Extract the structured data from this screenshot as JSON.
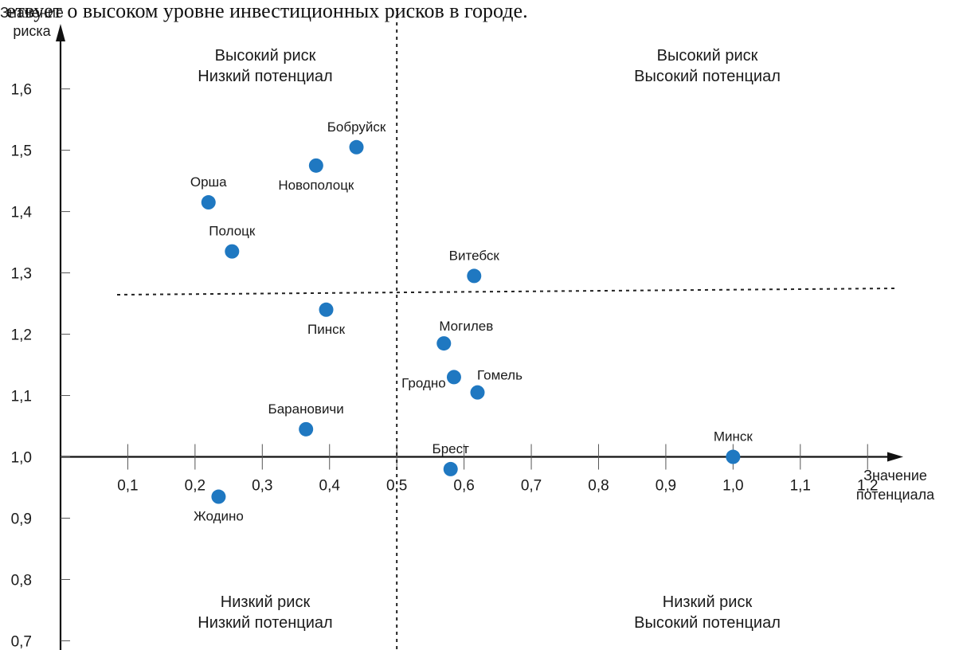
{
  "header_text": "етвует о высоком уровне инвестиционных рисков в городе.",
  "chart_data": {
    "type": "scatter",
    "ylabel_lines": [
      "Значение",
      "риска"
    ],
    "xlabel_lines": [
      "Значение",
      "потенциала"
    ],
    "x_ticks": [
      0.1,
      0.2,
      0.3,
      0.4,
      0.5,
      0.6,
      0.7,
      0.8,
      0.9,
      1.0,
      1.1,
      1.2
    ],
    "x_tick_labels": [
      "0,1",
      "0,2",
      "0,3",
      "0,4",
      "0,5",
      "0,6",
      "0,7",
      "0,8",
      "0,9",
      "1,0",
      "1,1",
      "1,2"
    ],
    "y_ticks": [
      0.7,
      0.8,
      0.9,
      1.0,
      1.1,
      1.2,
      1.3,
      1.4,
      1.5,
      1.6
    ],
    "y_tick_labels": [
      "0,7",
      "0,8",
      "0,9",
      "1,0",
      "1,1",
      "1,2",
      "1,3",
      "1,4",
      "1,5",
      "1,6"
    ],
    "xlim": [
      -0.09,
      1.33
    ],
    "ylim": [
      0.685,
      1.745
    ],
    "x_cross": 1.0,
    "threshold_x": 0.5,
    "threshold_y": 1.275,
    "quadrants": {
      "top_left": [
        "Высокий риск",
        "Низкий потенциал"
      ],
      "top_right": [
        "Высокий риск",
        "Высокий потенциал"
      ],
      "bottom_left": [
        "Низкий риск",
        "Низкий потенциал"
      ],
      "bottom_right": [
        "Низкий риск",
        "Высокий потенциал"
      ]
    },
    "points": [
      {
        "name": "Бобруйск",
        "x": 0.44,
        "y": 1.505,
        "label_pos": "above"
      },
      {
        "name": "Новополоцк",
        "x": 0.38,
        "y": 1.475,
        "label_pos": "below"
      },
      {
        "name": "Орша",
        "x": 0.22,
        "y": 1.415,
        "label_pos": "above"
      },
      {
        "name": "Полоцк",
        "x": 0.255,
        "y": 1.335,
        "label_pos": "above"
      },
      {
        "name": "Витебск",
        "x": 0.615,
        "y": 1.295,
        "label_pos": "above"
      },
      {
        "name": "Пинск",
        "x": 0.395,
        "y": 1.24,
        "label_pos": "below"
      },
      {
        "name": "Могилев",
        "x": 0.57,
        "y": 1.185,
        "label_pos": "above-right"
      },
      {
        "name": "Гомель",
        "x": 0.62,
        "y": 1.105,
        "label_pos": "above-right"
      },
      {
        "name": "Гродно",
        "x": 0.585,
        "y": 1.13,
        "label_pos": "below-left"
      },
      {
        "name": "Барановичи",
        "x": 0.365,
        "y": 1.045,
        "label_pos": "above"
      },
      {
        "name": "Минск",
        "x": 1.0,
        "y": 1.0,
        "label_pos": "above"
      },
      {
        "name": "Брест",
        "x": 0.58,
        "y": 0.98,
        "label_pos": "above"
      },
      {
        "name": "Жодино",
        "x": 0.235,
        "y": 0.935,
        "label_pos": "below"
      }
    ],
    "point_color": "#1f78c1"
  }
}
